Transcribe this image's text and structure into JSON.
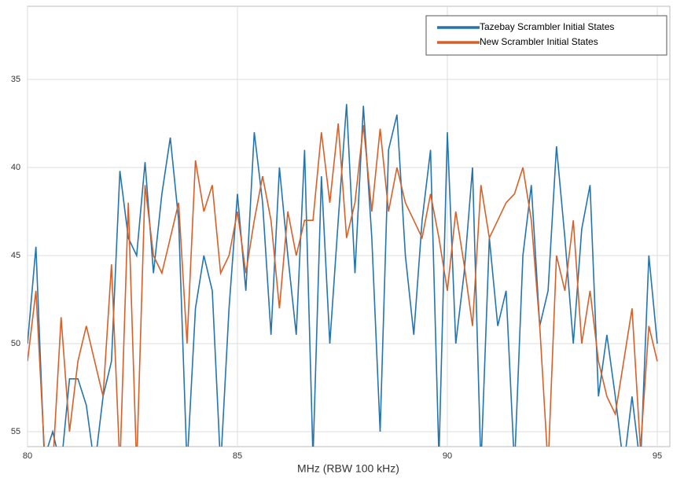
{
  "chart_data": {
    "type": "line",
    "x_label": "MHz (RBW 100 kHz)",
    "x": [
      80.0,
      80.2,
      80.4,
      80.6,
      80.8,
      81.0,
      81.2,
      81.4,
      81.6,
      81.8,
      82.0,
      82.2,
      82.4,
      82.6,
      82.8,
      83.0,
      83.2,
      83.4,
      83.6,
      83.8,
      84.0,
      84.2,
      84.4,
      84.6,
      84.8,
      85.0,
      85.2,
      85.4,
      85.6,
      85.8,
      86.0,
      86.2,
      86.4,
      86.6,
      86.8,
      87.0,
      87.2,
      87.4,
      87.6,
      87.8,
      88.0,
      88.2,
      88.4,
      88.6,
      88.8,
      89.0,
      89.2,
      89.4,
      89.6,
      89.8,
      90.0,
      90.2,
      90.4,
      90.6,
      90.8,
      91.0,
      91.2,
      91.4,
      91.6,
      91.8,
      92.0,
      92.2,
      92.4,
      92.6,
      92.8,
      93.0,
      93.2,
      93.4,
      93.6,
      93.8,
      94.0,
      94.2,
      94.4,
      94.6,
      94.8,
      95.0
    ],
    "series": [
      {
        "name": "Tazebay Scrambler Initial States",
        "color": "#2474ad",
        "values": [
          50,
          44.5,
          56.5,
          55,
          57,
          52,
          52,
          53.5,
          57,
          53,
          51,
          40.2,
          44,
          45,
          39.7,
          46,
          41.5,
          38.3,
          43,
          57,
          48,
          45,
          47,
          57,
          48,
          41.5,
          47,
          38,
          42,
          49.5,
          40,
          45,
          49.5,
          39,
          56.5,
          40.5,
          50,
          43,
          36.4,
          46,
          36.5,
          44,
          55,
          39,
          37,
          45,
          49.5,
          43,
          39,
          56.5,
          38,
          50,
          46,
          40,
          57,
          44,
          49,
          47,
          57,
          45,
          41,
          49,
          47,
          38.8,
          44,
          50,
          43.5,
          41,
          53,
          49.5,
          53,
          57,
          53,
          57,
          45,
          50
        ]
      },
      {
        "name": "New Scrambler Initial States",
        "color": "#d4612a",
        "values": [
          51,
          47,
          56,
          57,
          48.5,
          55,
          51,
          49,
          51,
          53,
          45.5,
          57,
          42,
          57,
          41,
          45,
          46,
          44,
          42,
          50,
          39.6,
          42.5,
          41,
          46,
          45,
          42.5,
          46,
          43,
          40.5,
          43,
          48,
          42.5,
          45,
          43,
          43,
          38,
          42,
          37.5,
          44,
          42,
          37.6,
          42.5,
          37.8,
          42.5,
          40,
          42,
          43,
          44,
          41.5,
          44,
          47,
          42.5,
          45.5,
          49,
          41,
          44,
          43,
          42,
          41.5,
          40,
          43,
          49,
          57,
          45,
          47,
          43,
          50,
          47,
          51,
          53,
          54,
          51,
          48,
          56,
          49,
          51
        ]
      }
    ],
    "xlim": [
      80,
      95.3
    ],
    "xticks": [
      80,
      85,
      90,
      95
    ],
    "ylim": [
      55.85,
      30.85
    ],
    "yticks": [
      35,
      40,
      45,
      50,
      55
    ],
    "grid": true,
    "legend": "upper right"
  }
}
